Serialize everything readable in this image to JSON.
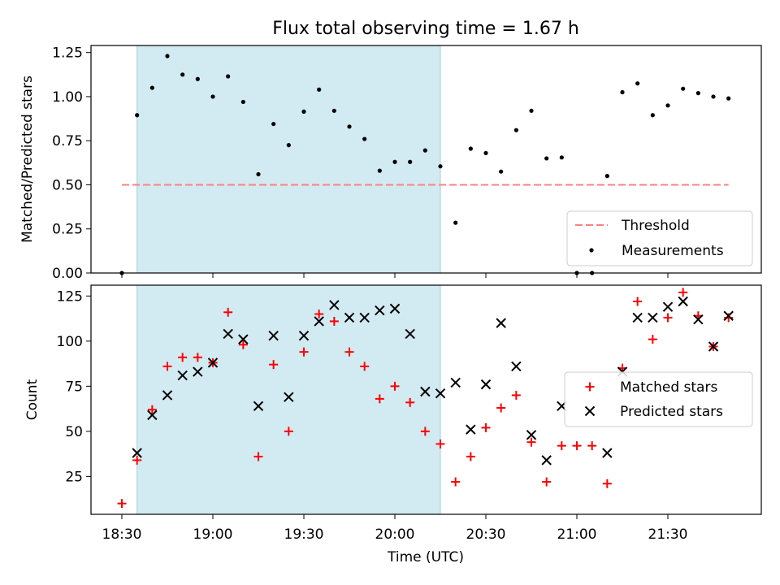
{
  "title": "Flux total observing time = 1.67 h",
  "colors": {
    "shade": "#add8e6",
    "threshold": "#ff8080",
    "measurement": "#000000",
    "matched": "#ff0000",
    "predicted": "#000000"
  },
  "chart_data": [
    {
      "type": "scatter",
      "panel": "top",
      "ylabel": "Matched/Predicted stars",
      "xlabel": "",
      "ylim": [
        0,
        1.29
      ],
      "yticks": [
        "0.00",
        "0.25",
        "0.50",
        "0.75",
        "1.00",
        "1.25"
      ],
      "ytick_values": [
        0,
        0.25,
        0.5,
        0.75,
        1.0,
        1.25
      ],
      "shaded_interval": [
        "18:35",
        "20:15"
      ],
      "threshold": {
        "name": "Threshold",
        "value": 0.5,
        "x_range": [
          "18:30",
          "21:50"
        ]
      },
      "legend": {
        "position": "lower right",
        "entries": [
          "Threshold",
          "Measurements"
        ]
      },
      "series": [
        {
          "name": "Measurements",
          "marker": "dot",
          "x": [
            "18:30",
            "18:35",
            "18:40",
            "18:45",
            "18:50",
            "18:55",
            "19:00",
            "19:05",
            "19:10",
            "19:15",
            "19:20",
            "19:25",
            "19:30",
            "19:35",
            "19:40",
            "19:45",
            "19:50",
            "19:55",
            "20:00",
            "20:05",
            "20:10",
            "20:15",
            "20:20",
            "20:25",
            "20:30",
            "20:35",
            "20:40",
            "20:45",
            "20:50",
            "20:55",
            "21:00",
            "21:05",
            "21:10",
            "21:15",
            "21:20",
            "21:25",
            "21:30",
            "21:35",
            "21:40",
            "21:45",
            "21:50"
          ],
          "values": [
            0.0,
            0.895,
            1.05,
            1.23,
            1.125,
            1.1,
            1.0,
            1.115,
            0.97,
            0.56,
            0.845,
            0.725,
            0.915,
            1.04,
            0.92,
            0.83,
            0.76,
            0.58,
            0.63,
            0.63,
            0.695,
            0.605,
            0.285,
            0.705,
            0.68,
            0.575,
            0.81,
            0.92,
            0.65,
            0.655,
            0.0,
            0.0,
            0.55,
            1.025,
            1.075,
            0.895,
            0.95,
            1.045,
            1.02,
            1.0,
            0.99
          ]
        }
      ]
    },
    {
      "type": "scatter",
      "panel": "bottom",
      "ylabel": "Count",
      "xlabel": "Time (UTC)",
      "ylim": [
        4,
        131
      ],
      "yticks": [
        "25",
        "50",
        "75",
        "100",
        "125"
      ],
      "ytick_values": [
        25,
        50,
        75,
        100,
        125
      ],
      "xticks": [
        "18:30",
        "19:00",
        "19:30",
        "20:00",
        "20:30",
        "21:00",
        "21:30"
      ],
      "shaded_interval": [
        "18:35",
        "20:15"
      ],
      "legend": {
        "position": "center right",
        "entries": [
          "Matched stars",
          "Predicted stars"
        ]
      },
      "series": [
        {
          "name": "Matched stars",
          "marker": "plus",
          "x": [
            "18:30",
            "18:35",
            "18:40",
            "18:45",
            "18:50",
            "18:55",
            "19:00",
            "19:05",
            "19:10",
            "19:15",
            "19:20",
            "19:25",
            "19:30",
            "19:35",
            "19:40",
            "19:45",
            "19:50",
            "19:55",
            "20:00",
            "20:05",
            "20:10",
            "20:15",
            "20:20",
            "20:25",
            "20:30",
            "20:35",
            "20:40",
            "20:45",
            "20:50",
            "20:55",
            "21:00",
            "21:05",
            "21:10",
            "21:15",
            "21:20",
            "21:25",
            "21:30",
            "21:35",
            "21:40",
            "21:45",
            "21:50"
          ],
          "values": [
            10,
            34,
            62,
            86,
            91,
            91,
            88,
            116,
            98,
            36,
            87,
            50,
            94,
            115,
            111,
            94,
            86,
            68,
            75,
            66,
            50,
            43,
            22,
            36,
            52,
            63,
            70,
            44,
            22,
            42,
            42,
            42,
            21,
            85,
            122,
            101,
            113,
            127,
            114,
            97,
            113
          ]
        },
        {
          "name": "Predicted stars",
          "marker": "x",
          "x": [
            "18:35",
            "18:40",
            "18:45",
            "18:50",
            "18:55",
            "19:00",
            "19:05",
            "19:10",
            "19:15",
            "19:20",
            "19:25",
            "19:30",
            "19:35",
            "19:40",
            "19:45",
            "19:50",
            "19:55",
            "20:00",
            "20:05",
            "20:10",
            "20:15",
            "20:20",
            "20:25",
            "20:30",
            "20:35",
            "20:40",
            "20:45",
            "20:50",
            "20:55",
            "21:10",
            "21:15",
            "21:20",
            "21:25",
            "21:30",
            "21:35",
            "21:40",
            "21:45",
            "21:50"
          ],
          "values": [
            38,
            59,
            70,
            81,
            83,
            88,
            104,
            101,
            64,
            103,
            69,
            103,
            111,
            120,
            113,
            113,
            117,
            118,
            104,
            72,
            71,
            77,
            51,
            76,
            110,
            86,
            48,
            34,
            64,
            38,
            83,
            113,
            113,
            119,
            122,
            112,
            97,
            114
          ]
        }
      ]
    }
  ]
}
